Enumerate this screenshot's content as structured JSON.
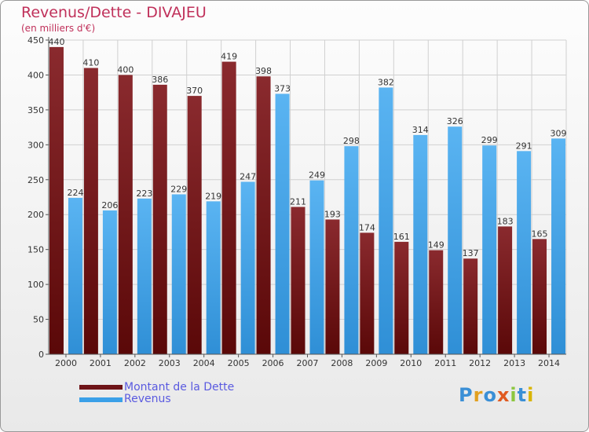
{
  "colors": {
    "debt": "#6e1418",
    "revenue": "#3aa0e8",
    "title": "#c0305a",
    "legend": "#5a5ae0"
  },
  "logo_text": "Proxiti",
  "chart_data": {
    "type": "bar",
    "title": "Revenus/Dette - DIVAJEU",
    "subtitle": "(en milliers d'€)",
    "xlabel": "",
    "ylabel": "",
    "ylim": [
      0,
      450
    ],
    "yticks": [
      0,
      50,
      100,
      150,
      200,
      250,
      300,
      350,
      400,
      450
    ],
    "grid": true,
    "legend_position": "bottom-left",
    "categories": [
      "2000",
      "2001",
      "2002",
      "2003",
      "2004",
      "2005",
      "2006",
      "2007",
      "2008",
      "2009",
      "2010",
      "2011",
      "2012",
      "2013",
      "2014"
    ],
    "series": [
      {
        "name": "Montant de la Dette",
        "values": [
          440,
          410,
          400,
          386,
          370,
          419,
          398,
          211,
          193,
          174,
          161,
          149,
          137,
          183,
          165
        ]
      },
      {
        "name": "Revenus",
        "values": [
          224,
          206,
          223,
          229,
          219,
          247,
          373,
          249,
          298,
          382,
          314,
          326,
          299,
          291,
          309
        ]
      }
    ]
  }
}
